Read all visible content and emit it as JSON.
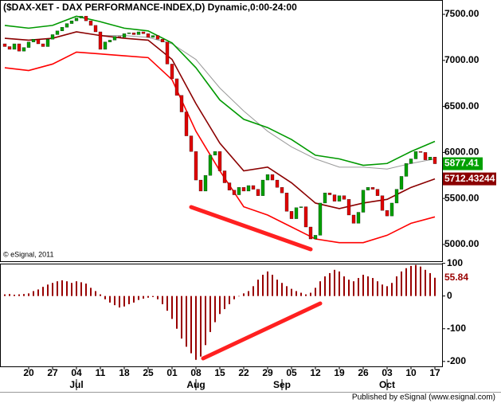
{
  "chart_data": [
    {
      "type": "candlestick",
      "title": "($DAX-XET - DAX PERFORMANCE-INDEX,D) Dynamic,0:00-24:00",
      "annotation": "© eSignal, 2011",
      "xlim": [
        -1,
        91.5
      ],
      "x": [
        0,
        1,
        2,
        3,
        4,
        5,
        6,
        7,
        8,
        9,
        10,
        11,
        12,
        13,
        14,
        15,
        16,
        17,
        18,
        19,
        20,
        21,
        22,
        23,
        24,
        25,
        26,
        27,
        28,
        29,
        30,
        31,
        32,
        33,
        34,
        35,
        36,
        37,
        38,
        39,
        40,
        41,
        42,
        43,
        44,
        45,
        46,
        47,
        48,
        49,
        50,
        51,
        52,
        53,
        54,
        55,
        56,
        57,
        58,
        59,
        60,
        61,
        62,
        63,
        64,
        65,
        66,
        67,
        68,
        69,
        70,
        71,
        72,
        73,
        74,
        75,
        76,
        77,
        78,
        79,
        80,
        81,
        82,
        83,
        84,
        85,
        86,
        87,
        88,
        89,
        90
      ],
      "open": [
        7180,
        7150,
        7120,
        7180,
        7100,
        7140,
        7200,
        7230,
        7180,
        7150,
        7230,
        7280,
        7320,
        7360,
        7400,
        7430,
        7460,
        7480,
        7430,
        7380,
        7310,
        7120,
        7200,
        7220,
        7260,
        7250,
        7290,
        7300,
        7280,
        7310,
        7290,
        7250,
        7270,
        7230,
        7200,
        6960,
        6800,
        6620,
        6440,
        6180,
        6010,
        5700,
        5580,
        5750,
        5970,
        6010,
        5800,
        5670,
        5590,
        5540,
        5620,
        5580,
        5640,
        5600,
        5530,
        5700,
        5760,
        5700,
        5620,
        5560,
        5360,
        5280,
        5400,
        5410,
        5190,
        5060,
        5100,
        5450,
        5560,
        5540,
        5470,
        5530,
        5490,
        5320,
        5230,
        5350,
        5590,
        5620,
        5600,
        5530,
        5370,
        5310,
        5450,
        5600,
        5740,
        5880,
        5930,
        6010,
        6000,
        5920,
        5950
      ],
      "close": [
        7150,
        7120,
        7180,
        7100,
        7140,
        7200,
        7230,
        7180,
        7150,
        7230,
        7280,
        7320,
        7360,
        7400,
        7430,
        7460,
        7480,
        7430,
        7380,
        7310,
        7120,
        7200,
        7220,
        7260,
        7250,
        7290,
        7300,
        7280,
        7310,
        7290,
        7250,
        7270,
        7230,
        7200,
        6960,
        6800,
        6620,
        6440,
        6180,
        6010,
        5700,
        5580,
        5750,
        5970,
        6010,
        5800,
        5670,
        5590,
        5540,
        5620,
        5580,
        5640,
        5600,
        5530,
        5700,
        5760,
        5700,
        5620,
        5560,
        5360,
        5280,
        5400,
        5410,
        5190,
        5060,
        5100,
        5450,
        5560,
        5540,
        5470,
        5530,
        5490,
        5320,
        5230,
        5350,
        5590,
        5620,
        5600,
        5530,
        5370,
        5310,
        5450,
        5600,
        5740,
        5880,
        5930,
        6010,
        6000,
        5920,
        5950,
        5877.41
      ],
      "up_color": "#00a000",
      "down_color": "#e00000",
      "line_x": [
        0,
        5,
        10,
        15,
        20,
        25,
        30,
        35,
        40,
        45,
        50,
        55,
        60,
        65,
        70,
        75,
        80,
        85,
        90
      ],
      "lines": [
        {
          "color": "#999999",
          "values": [
            null,
            null,
            null,
            null,
            7270,
            7270,
            7250,
            7180,
            7010,
            6700,
            6450,
            6230,
            6060,
            5930,
            5840,
            5840,
            5820,
            5880,
            5930
          ]
        },
        {
          "color": "#009900",
          "values": [
            7380,
            7350,
            7380,
            7480,
            7420,
            7350,
            7320,
            7190,
            6920,
            6570,
            6360,
            6270,
            6140,
            5970,
            5930,
            5860,
            5880,
            6010,
            6120
          ]
        },
        {
          "color": "#8b0000",
          "values": [
            7240,
            7220,
            7240,
            7310,
            7270,
            7240,
            7220,
            7010,
            6530,
            6100,
            5800,
            5840,
            5670,
            5450,
            5390,
            5450,
            5490,
            5620,
            5712.43244
          ]
        },
        {
          "color": "#ff0000",
          "values": [
            6920,
            6890,
            6960,
            7090,
            7070,
            7050,
            7030,
            6790,
            6230,
            5800,
            5410,
            5320,
            5190,
            5060,
            5020,
            5020,
            5100,
            5230,
            5300
          ]
        }
      ],
      "ylim": [
        4818,
        7656
      ],
      "yticks": [
        {
          "value": 5000,
          "label": "5000.00"
        },
        {
          "value": 5500,
          "label": "5500.00"
        },
        {
          "value": 6000,
          "label": "6000.00"
        },
        {
          "value": 6500,
          "label": "6500.00"
        },
        {
          "value": 7000,
          "label": "7000.00"
        },
        {
          "value": 7500,
          "label": "7500.00"
        }
      ]
    },
    {
      "type": "bar",
      "color": "#990000",
      "values": [
        5,
        6,
        4,
        5,
        6,
        8,
        15,
        20,
        28,
        35,
        40,
        45,
        48,
        45,
        40,
        45,
        42,
        38,
        25,
        15,
        5,
        -10,
        -20,
        -28,
        -35,
        -32,
        -25,
        -20,
        -12,
        -8,
        -5,
        -3,
        -10,
        -25,
        -45,
        -70,
        -100,
        -130,
        -155,
        -175,
        -195,
        -185,
        -150,
        -110,
        -80,
        -55,
        -40,
        -25,
        -10,
        0,
        8,
        15,
        30,
        50,
        65,
        75,
        65,
        50,
        40,
        30,
        22,
        15,
        10,
        5,
        10,
        25,
        45,
        60,
        70,
        80,
        75,
        60,
        50,
        45,
        55,
        65,
        60,
        55,
        45,
        35,
        30,
        40,
        60,
        75,
        85,
        92,
        95,
        90,
        80,
        70,
        55.84
      ],
      "ylim": [
        -215,
        99
      ],
      "yticks": [
        -200,
        -100,
        0,
        100
      ],
      "xticks": [
        {
          "value": 5,
          "label": "20"
        },
        {
          "value": 10,
          "label": "27"
        },
        {
          "value": 15,
          "label": "04"
        },
        {
          "value": 20,
          "label": "11"
        },
        {
          "value": 25,
          "label": "18"
        },
        {
          "value": 30,
          "label": "25"
        },
        {
          "value": 35,
          "label": "01"
        },
        {
          "value": 40,
          "label": "08"
        },
        {
          "value": 45,
          "label": "15"
        },
        {
          "value": 50,
          "label": "22"
        },
        {
          "value": 55,
          "label": "29"
        },
        {
          "value": 60,
          "label": "05"
        },
        {
          "value": 65,
          "label": "12"
        },
        {
          "value": 70,
          "label": "19"
        },
        {
          "value": 75,
          "label": "26"
        },
        {
          "value": 80,
          "label": "03"
        },
        {
          "value": 85,
          "label": "10"
        },
        {
          "value": 90,
          "label": "17"
        }
      ],
      "month_ticks": [
        {
          "value": 15,
          "label": "Jul"
        },
        {
          "value": 40,
          "label": "Aug"
        },
        {
          "value": 58,
          "label": "Sep"
        },
        {
          "value": 80,
          "label": "Oct"
        }
      ],
      "footer": "Published by eSignal (www.esignal.com)"
    }
  ]
}
